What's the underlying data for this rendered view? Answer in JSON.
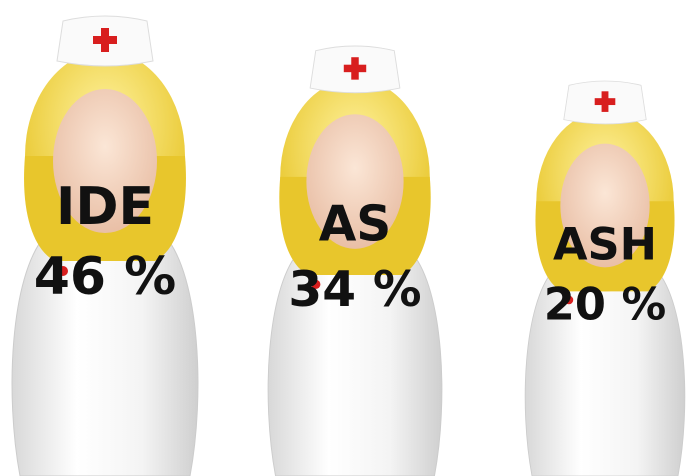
{
  "chart_data": {
    "type": "pictogram",
    "categories": [
      "IDE",
      "AS",
      "ASH"
    ],
    "values": [
      46,
      34,
      20
    ],
    "value_labels": [
      "46 %",
      "34 %",
      "20 %"
    ]
  }
}
